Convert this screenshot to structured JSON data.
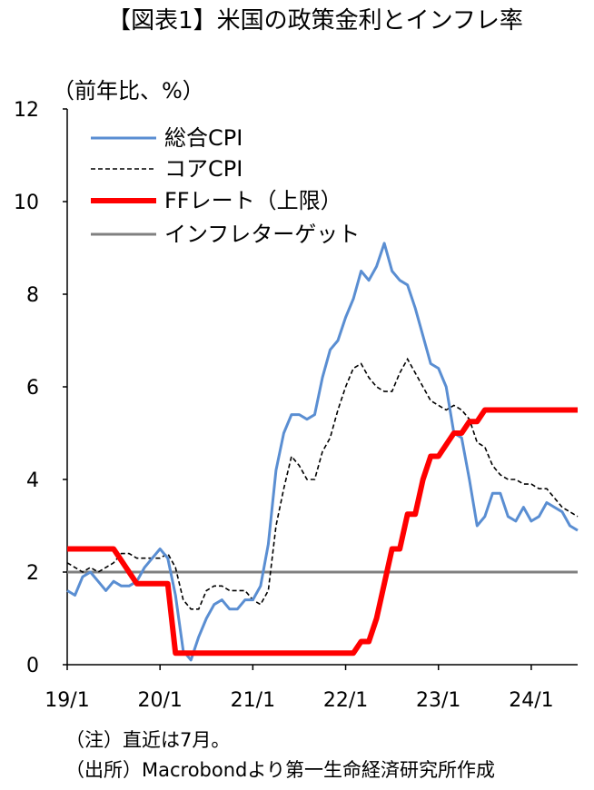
{
  "title": "【図表1】米国の政策金利とインフレ率",
  "notes": [
    "（注）直近は7月。",
    "（出所）Macrobondより第一生命経済研究所作成"
  ],
  "chart_data": {
    "type": "line",
    "title": "【図表1】米国の政策金利とインフレ率",
    "xlabel": "",
    "ylabel": "（前年比、%）",
    "ylim": [
      0,
      12
    ],
    "y_ticks": [
      0,
      2,
      4,
      6,
      8,
      10,
      12
    ],
    "x_range": [
      0,
      66
    ],
    "x_ticks": [
      {
        "label": "19/1",
        "index": 0
      },
      {
        "label": "20/1",
        "index": 12
      },
      {
        "label": "21/1",
        "index": 24
      },
      {
        "label": "22/1",
        "index": 36
      },
      {
        "label": "23/1",
        "index": 48
      },
      {
        "label": "24/1",
        "index": 60
      }
    ],
    "grid": false,
    "legend": "top-left",
    "series": [
      {
        "name": "総合CPI",
        "color": "#5A8ED2",
        "values": [
          1.6,
          1.5,
          1.9,
          2.0,
          1.8,
          1.6,
          1.8,
          1.7,
          1.7,
          1.8,
          2.1,
          2.3,
          2.5,
          2.3,
          1.5,
          0.3,
          0.1,
          0.6,
          1.0,
          1.3,
          1.4,
          1.2,
          1.2,
          1.4,
          1.4,
          1.7,
          2.6,
          4.2,
          5.0,
          5.4,
          5.4,
          5.3,
          5.4,
          6.2,
          6.8,
          7.0,
          7.5,
          7.9,
          8.5,
          8.3,
          8.6,
          9.1,
          8.5,
          8.3,
          8.2,
          7.7,
          7.1,
          6.5,
          6.4,
          6.0,
          5.0,
          4.9,
          4.0,
          3.0,
          3.2,
          3.7,
          3.7,
          3.2,
          3.1,
          3.4,
          3.1,
          3.2,
          3.5,
          3.4,
          3.3,
          3.0,
          2.9
        ]
      },
      {
        "name": "コアCPI",
        "color": "#000000",
        "values": [
          2.2,
          2.1,
          2.0,
          2.1,
          2.0,
          2.1,
          2.2,
          2.4,
          2.4,
          2.3,
          2.3,
          2.3,
          2.3,
          2.4,
          2.1,
          1.4,
          1.2,
          1.2,
          1.6,
          1.7,
          1.7,
          1.6,
          1.6,
          1.6,
          1.4,
          1.3,
          1.6,
          3.0,
          3.8,
          4.5,
          4.3,
          4.0,
          4.0,
          4.6,
          4.9,
          5.5,
          6.0,
          6.4,
          6.5,
          6.2,
          6.0,
          5.9,
          5.9,
          6.3,
          6.6,
          6.3,
          6.0,
          5.7,
          5.6,
          5.5,
          5.6,
          5.5,
          5.3,
          4.8,
          4.7,
          4.3,
          4.1,
          4.0,
          4.0,
          3.9,
          3.9,
          3.8,
          3.8,
          3.6,
          3.4,
          3.3,
          3.2
        ]
      },
      {
        "name": "FFレート（上限）",
        "color": "#FF0000",
        "values": [
          2.5,
          2.5,
          2.5,
          2.5,
          2.5,
          2.5,
          2.5,
          2.25,
          2.0,
          1.75,
          1.75,
          1.75,
          1.75,
          1.75,
          0.25,
          0.25,
          0.25,
          0.25,
          0.25,
          0.25,
          0.25,
          0.25,
          0.25,
          0.25,
          0.25,
          0.25,
          0.25,
          0.25,
          0.25,
          0.25,
          0.25,
          0.25,
          0.25,
          0.25,
          0.25,
          0.25,
          0.25,
          0.25,
          0.5,
          0.5,
          1.0,
          1.75,
          2.5,
          2.5,
          3.25,
          3.25,
          4.0,
          4.5,
          4.5,
          4.75,
          5.0,
          5.0,
          5.25,
          5.25,
          5.5,
          5.5,
          5.5,
          5.5,
          5.5,
          5.5,
          5.5,
          5.5,
          5.5,
          5.5,
          5.5,
          5.5,
          5.5
        ]
      },
      {
        "name": "インフレターゲット",
        "color": "#808080",
        "values": [
          2,
          2,
          2,
          2,
          2,
          2,
          2,
          2,
          2,
          2,
          2,
          2,
          2,
          2,
          2,
          2,
          2,
          2,
          2,
          2,
          2,
          2,
          2,
          2,
          2,
          2,
          2,
          2,
          2,
          2,
          2,
          2,
          2,
          2,
          2,
          2,
          2,
          2,
          2,
          2,
          2,
          2,
          2,
          2,
          2,
          2,
          2,
          2,
          2,
          2,
          2,
          2,
          2,
          2,
          2,
          2,
          2,
          2,
          2,
          2,
          2,
          2,
          2,
          2,
          2,
          2,
          2
        ]
      }
    ]
  }
}
